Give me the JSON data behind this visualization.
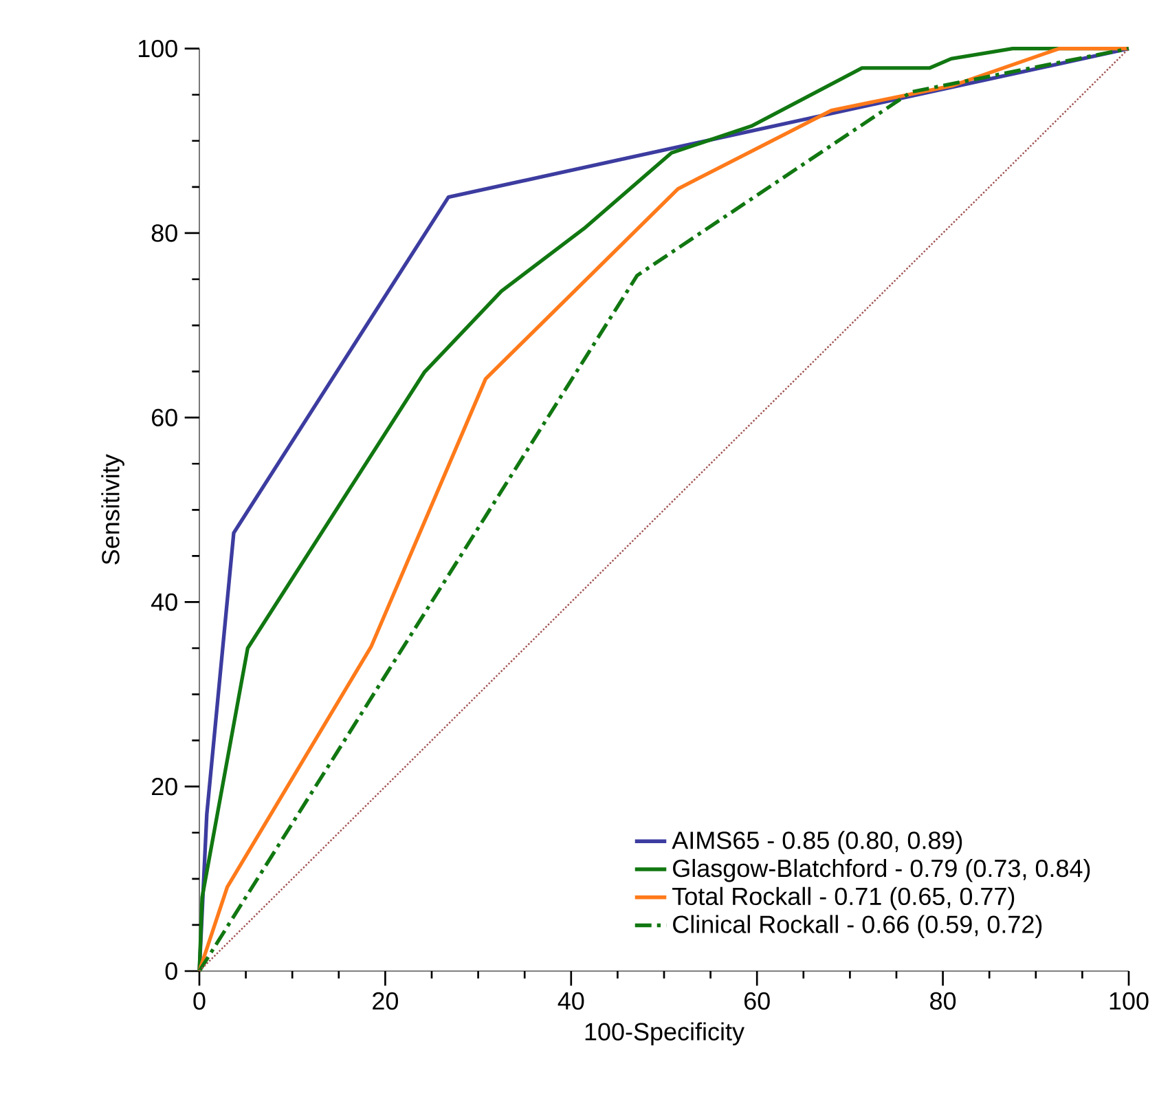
{
  "chart_data": {
    "type": "line",
    "xlabel": "100-Specificity",
    "ylabel": "Sensitivity",
    "xlim": [
      0,
      100
    ],
    "ylim": [
      0,
      100
    ],
    "xticks": [
      0,
      20,
      40,
      60,
      80,
      100
    ],
    "yticks": [
      0,
      20,
      40,
      60,
      80,
      100
    ],
    "grid": false,
    "legend": "bottom right",
    "marker": "none",
    "series": [
      {
        "name": "AIMS65 - 0.85 (0.80, 0.89)",
        "color": "#3c3ca0",
        "line_style": "solid",
        "x": [
          0,
          0.8,
          3.7,
          26.8,
          100
        ],
        "values": [
          0,
          17,
          47.5,
          83.9,
          100
        ]
      },
      {
        "name": "Glasgow-Blatchford - 0.79 (0.73, 0.84)",
        "color": "#117711",
        "line_style": "solid",
        "x": [
          0,
          0.3,
          5.2,
          24.2,
          32.5,
          41.4,
          50.8,
          59.4,
          71.3,
          78.6,
          80.9,
          87.5,
          100
        ],
        "values": [
          0,
          8,
          35,
          64.9,
          73.7,
          80.5,
          88.7,
          91.6,
          97.9,
          97.9,
          98.9,
          100,
          100
        ]
      },
      {
        "name": "Total Rockall - 0.71 (0.65, 0.77)",
        "color": "#ff7a1a",
        "line_style": "solid",
        "x": [
          0,
          3,
          18.5,
          30.8,
          51.5,
          68,
          81.1,
          92.5,
          100
        ],
        "values": [
          0,
          9.1,
          35.2,
          64.2,
          84.8,
          93.3,
          96,
          100,
          100
        ]
      },
      {
        "name": "Clinical Rockall - 0.66 (0.59, 0.72)",
        "color": "#117711",
        "line_style": "dashdotted",
        "x": [
          0,
          47.1,
          76.6,
          100
        ],
        "values": [
          0,
          75.4,
          95.3,
          100
        ]
      },
      {
        "color": "#a05050",
        "line_style": "dotted",
        "x": [
          0,
          100
        ],
        "values": [
          0,
          100
        ]
      }
    ]
  }
}
